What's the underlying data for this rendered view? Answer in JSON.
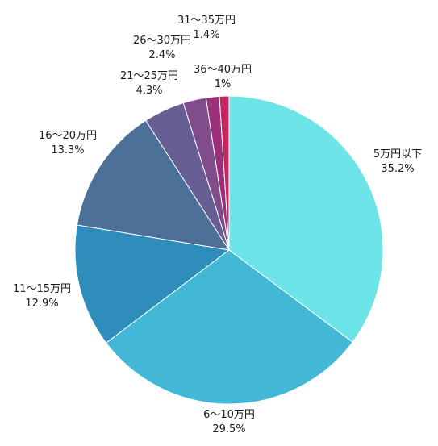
{
  "chart_data": {
    "type": "pie",
    "title": "",
    "start_angle_deg": 0,
    "direction": "clockwise",
    "slices": [
      {
        "label": "5万円以下",
        "value": 35.2,
        "value_label": "35.2%",
        "color": "#6ce4e8"
      },
      {
        "label": "6〜10万円",
        "value": 29.5,
        "value_label": "29.5%",
        "color": "#42b8d6"
      },
      {
        "label": "11〜15万円",
        "value": 12.9,
        "value_label": "12.9%",
        "color": "#2f8dbb"
      },
      {
        "label": "16〜20万円",
        "value": 13.3,
        "value_label": "13.3%",
        "color": "#4c7098"
      },
      {
        "label": "21〜25万円",
        "value": 4.3,
        "value_label": "4.3%",
        "color": "#675f93"
      },
      {
        "label": "26〜30万円",
        "value": 2.4,
        "value_label": "2.4%",
        "color": "#814c8a"
      },
      {
        "label": "31〜35万円",
        "value": 1.4,
        "value_label": "1.4%",
        "color": "#9a2f7a"
      },
      {
        "label": "36〜40万円",
        "value": 1.0,
        "value_label": "1%",
        "color": "#c5255f"
      }
    ]
  }
}
